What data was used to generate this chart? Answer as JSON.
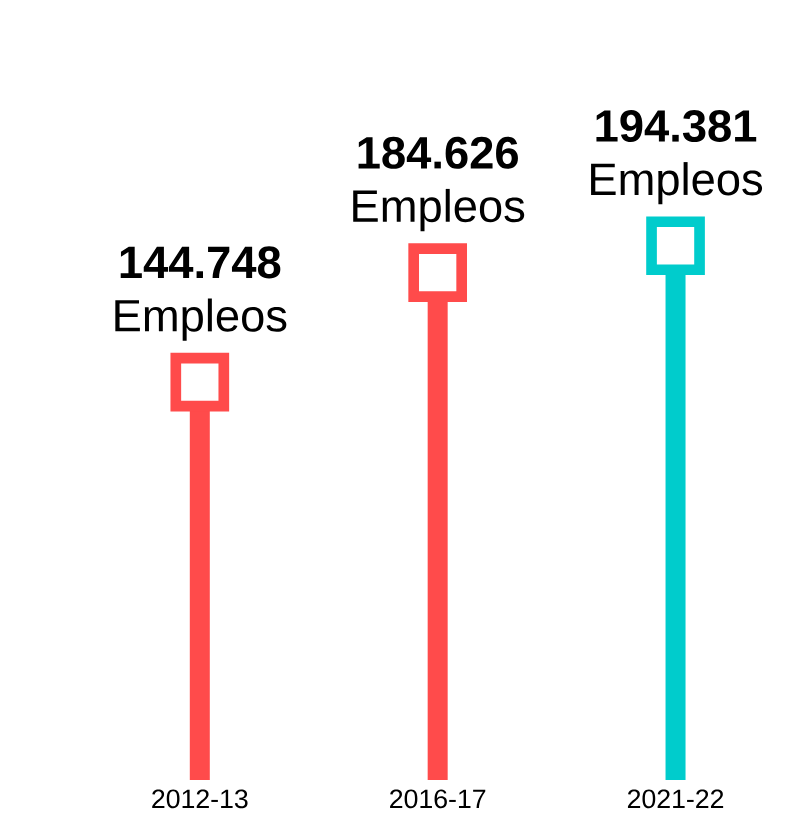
{
  "chart_data": {
    "type": "lollipop",
    "categories": [
      "2012-13",
      "2016-17",
      "2021-22"
    ],
    "values": [
      144748,
      184626,
      194381
    ],
    "colors": [
      "#ff4b4b",
      "#ff4b4b",
      "#00cccc"
    ],
    "value_labels": [
      "**144.748** Empleos",
      "**184.626** Empleos",
      "**194.381** Empleos"
    ],
    "marker": "square"
  }
}
